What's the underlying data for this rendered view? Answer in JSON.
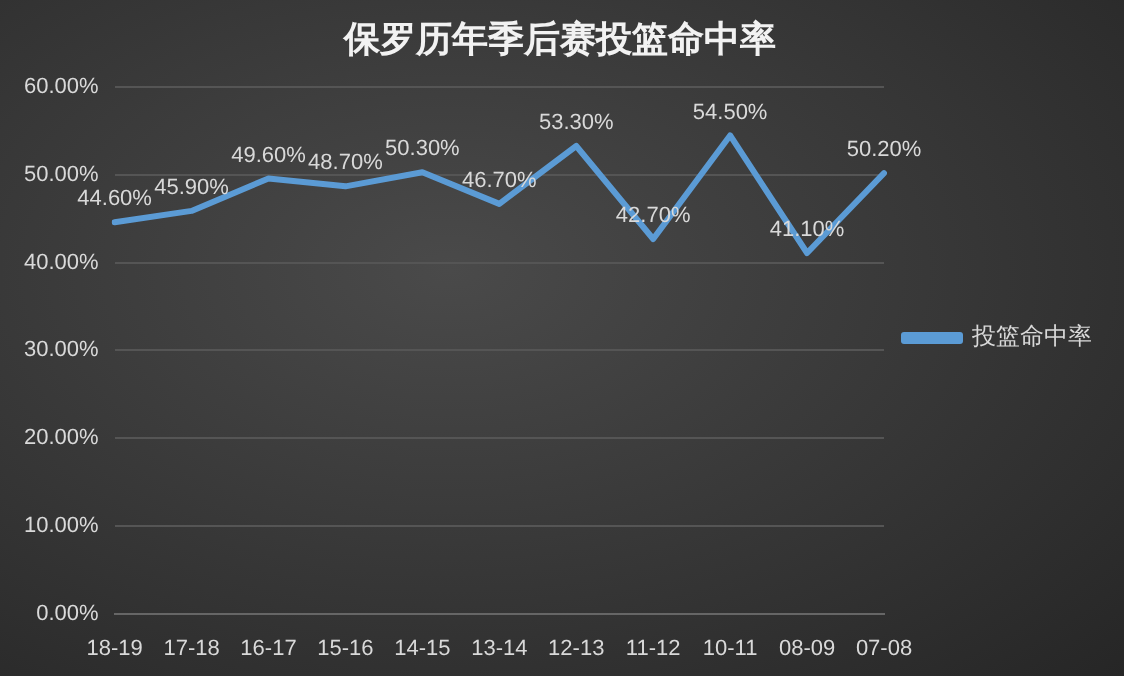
{
  "chart_data": {
    "type": "line",
    "title": "保罗历年季后赛投篮命中率",
    "categories": [
      "18-19",
      "17-18",
      "16-17",
      "15-16",
      "14-15",
      "13-14",
      "12-13",
      "11-12",
      "10-11",
      "08-09",
      "07-08"
    ],
    "series": [
      {
        "name": "投篮命中率",
        "color": "#5b9bd5",
        "values": [
          44.6,
          45.9,
          49.6,
          48.7,
          50.3,
          46.7,
          53.3,
          42.7,
          54.5,
          41.1,
          50.2
        ],
        "value_labels": [
          "44.60%",
          "45.90%",
          "49.60%",
          "48.70%",
          "50.30%",
          "46.70%",
          "53.30%",
          "42.70%",
          "54.50%",
          "41.10%",
          "50.20%"
        ]
      }
    ],
    "ylim": [
      0,
      60
    ],
    "yticks": [
      {
        "value": 0,
        "label": "0.00%"
      },
      {
        "value": 10,
        "label": "10.00%"
      },
      {
        "value": 20,
        "label": "20.00%"
      },
      {
        "value": 30,
        "label": "30.00%"
      },
      {
        "value": 40,
        "label": "40.00%"
      },
      {
        "value": 50,
        "label": "50.00%"
      },
      {
        "value": 60,
        "label": "60.00%"
      }
    ],
    "grid": "y",
    "legend": "right",
    "marker": "none",
    "line_style": "solid"
  }
}
